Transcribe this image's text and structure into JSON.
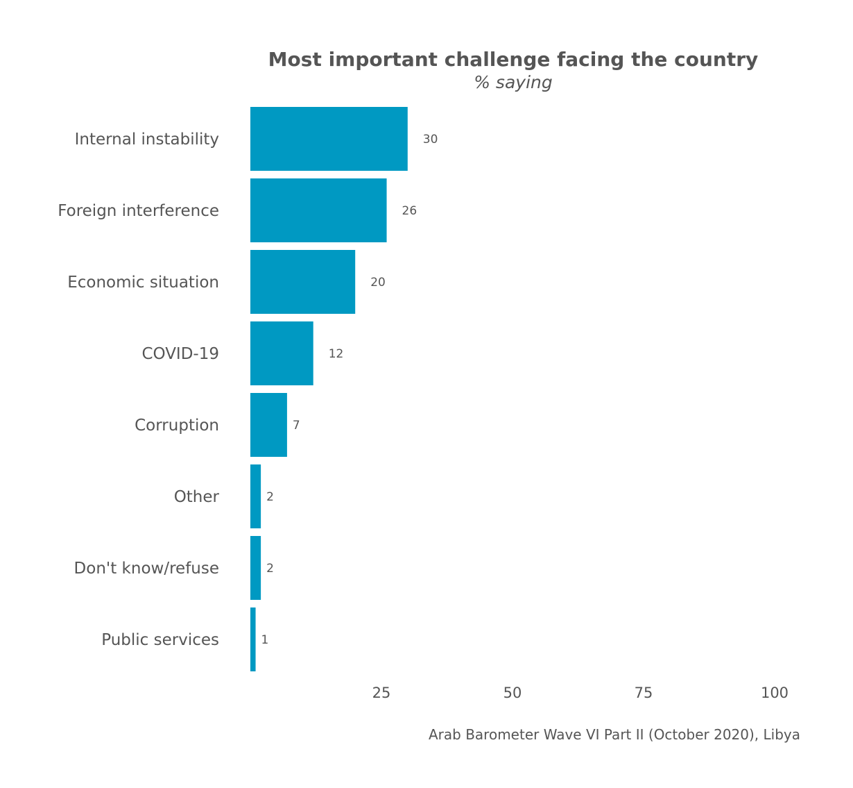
{
  "chart_data": {
    "type": "bar",
    "orientation": "horizontal",
    "title": "Most important challenge facing the country",
    "subtitle": "% saying",
    "categories": [
      "Internal instability",
      "Foreign interference",
      "Economic situation",
      "COVID-19",
      "Corruption",
      "Other",
      "Don't know/refuse",
      "Public services"
    ],
    "values": [
      30,
      26,
      20,
      12,
      7,
      2,
      2,
      1
    ],
    "xlim": [
      0,
      100
    ],
    "xticks": [
      25,
      50,
      75,
      100
    ],
    "xlabel": "",
    "ylabel": "",
    "grid": false,
    "legend": "none",
    "bar_color": "#0099c2",
    "text_color": "#555555",
    "caption": "Arab Barometer Wave VI Part II (October 2020), Libya"
  }
}
